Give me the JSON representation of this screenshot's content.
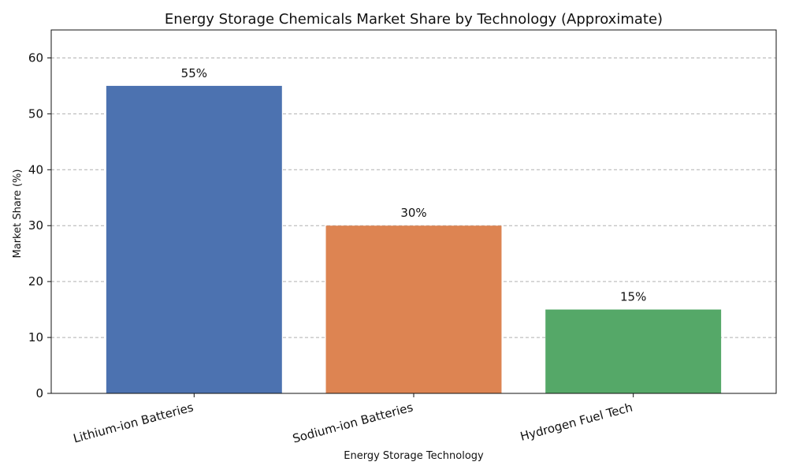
{
  "chart_data": {
    "type": "bar",
    "title": "Energy Storage Chemicals Market Share by Technology (Approximate)",
    "xlabel": "Energy Storage Technology",
    "ylabel": "Market Share (%)",
    "categories": [
      "Lithium-ion Batteries",
      "Sodium-ion Batteries",
      "Hydrogen Fuel Tech"
    ],
    "values": [
      55,
      30,
      15
    ],
    "data_labels": [
      "55%",
      "30%",
      "15%"
    ],
    "colors": [
      "#4c72b0",
      "#dd8452",
      "#55a868"
    ],
    "yticks": [
      0,
      10,
      20,
      30,
      40,
      50,
      60
    ],
    "ylim": [
      0,
      65
    ],
    "grid": "y-dashed",
    "legend": "none"
  }
}
